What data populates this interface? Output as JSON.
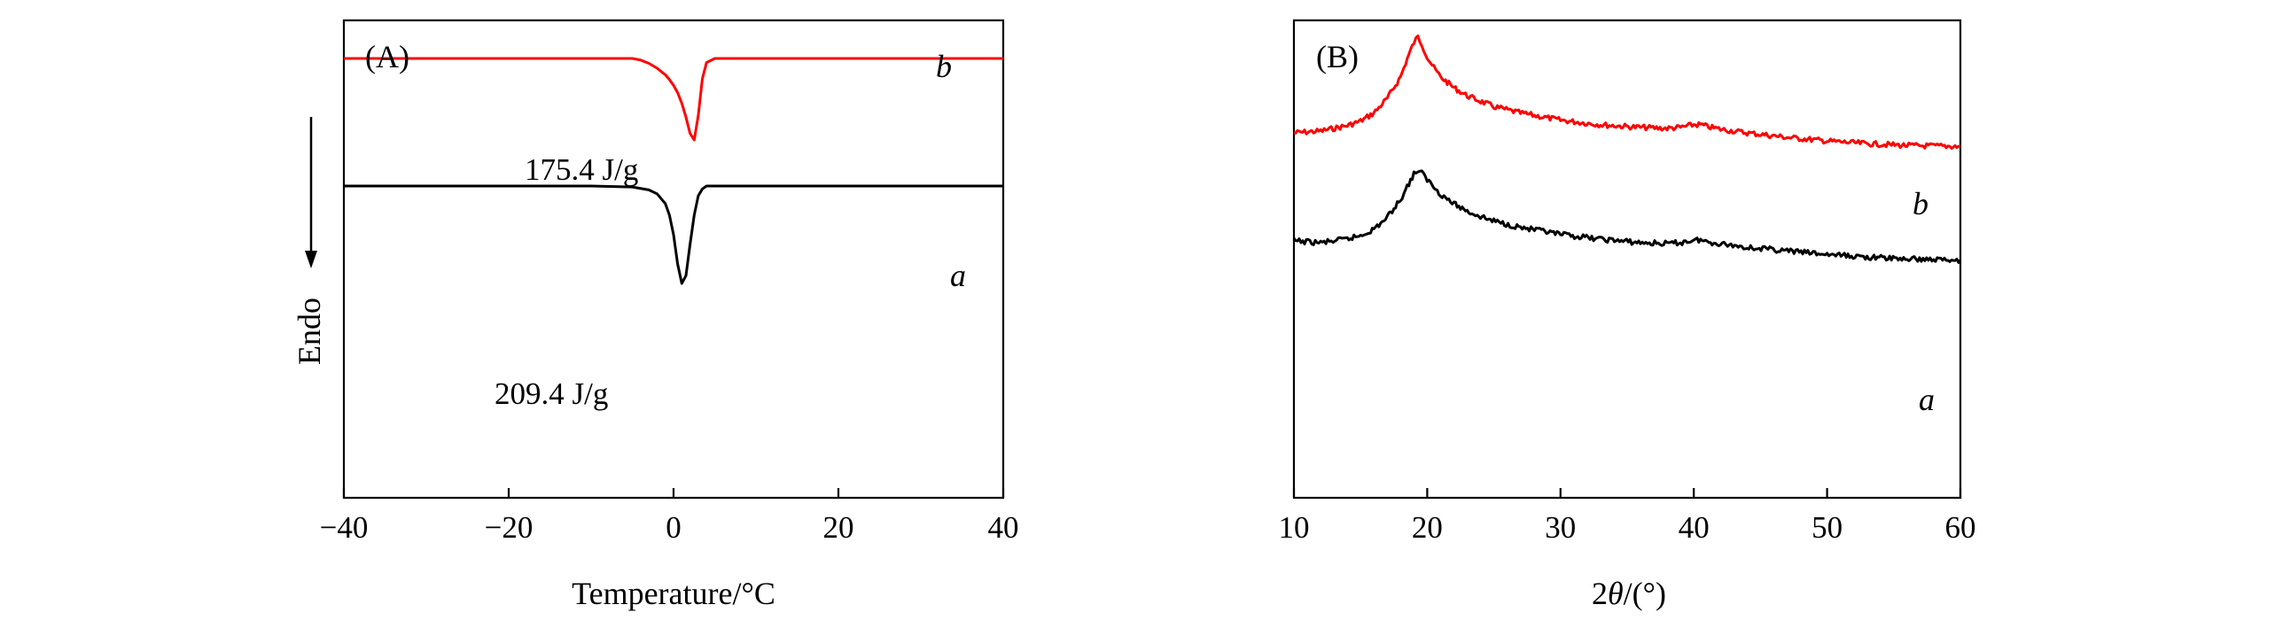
{
  "chart_data": [
    {
      "panel": "(A)",
      "type": "line",
      "xlabel": "Temperature/°C",
      "ylabel": "Endo",
      "xlim": [
        -40,
        40
      ],
      "xticks": [
        "−40",
        "−20",
        "0",
        "20",
        "40"
      ],
      "y_ticks_shown": false,
      "grid": false,
      "series": [
        {
          "name": "b",
          "color": "#ff0000",
          "annotation": "175.4 J/g",
          "x": [
            -40,
            -30,
            -20,
            -10,
            -5,
            -4,
            -3,
            -2,
            -1,
            -0.5,
            0,
            0.5,
            1,
            1.5,
            2,
            2.5,
            3,
            3.5,
            4,
            5,
            10,
            20,
            30,
            40
          ],
          "y": [
            0.0,
            0.0,
            0.0,
            0.0,
            0.0,
            -0.02,
            -0.06,
            -0.12,
            -0.2,
            -0.26,
            -0.33,
            -0.42,
            -0.55,
            -0.72,
            -0.92,
            -1.0,
            -0.7,
            -0.25,
            -0.05,
            0.0,
            0.0,
            0.0,
            0.0,
            0.0
          ]
        },
        {
          "name": "a",
          "color": "#000000",
          "annotation": "209.4 J/g",
          "x": [
            -40,
            -30,
            -20,
            -10,
            -5,
            -3,
            -2,
            -1,
            -0.5,
            0,
            0.5,
            1,
            1.5,
            2,
            2.5,
            3,
            3.5,
            4,
            5,
            10,
            20,
            30,
            40
          ],
          "y": [
            0.0,
            0.0,
            0.0,
            0.0,
            -0.01,
            -0.04,
            -0.08,
            -0.18,
            -0.3,
            -0.5,
            -0.8,
            -1.0,
            -0.92,
            -0.6,
            -0.3,
            -0.1,
            -0.03,
            0.0,
            0.0,
            0.0,
            0.0,
            0.0,
            0.0
          ]
        }
      ]
    },
    {
      "panel": "(B)",
      "type": "line",
      "xlabel": "2θ/(°)",
      "xlabel_var": "θ",
      "xlabel_pre": "2",
      "xlabel_post": "/(°)",
      "xlim": [
        10,
        60
      ],
      "xticks": [
        "10",
        "20",
        "30",
        "40",
        "50",
        "60"
      ],
      "y_ticks_shown": false,
      "grid": false,
      "series": [
        {
          "name": "b",
          "color": "#ff0000",
          "x": [
            10,
            12,
            14,
            15,
            16,
            17,
            18,
            18.5,
            19,
            19.3,
            19.6,
            20,
            20.5,
            21,
            22,
            23,
            24,
            25,
            27,
            30,
            33,
            36,
            38,
            39,
            40,
            40.5,
            41,
            42,
            44,
            47,
            50,
            53,
            56,
            60
          ],
          "y": [
            0.0,
            0.02,
            0.08,
            0.13,
            0.22,
            0.38,
            0.62,
            0.82,
            1.0,
            1.06,
            0.98,
            0.84,
            0.72,
            0.62,
            0.5,
            0.41,
            0.35,
            0.29,
            0.22,
            0.14,
            0.09,
            0.06,
            0.05,
            0.06,
            0.09,
            0.09,
            0.07,
            0.04,
            0.0,
            -0.05,
            -0.09,
            -0.12,
            -0.14,
            -0.15
          ]
        },
        {
          "name": "a",
          "color": "#000000",
          "x": [
            10,
            12,
            14,
            15,
            16,
            17,
            18,
            18.5,
            19,
            19.3,
            19.6,
            20,
            20.5,
            21,
            22,
            23,
            24,
            25,
            27,
            30,
            33,
            36,
            38,
            39,
            40,
            40.5,
            41,
            42,
            44,
            47,
            50,
            53,
            56,
            60
          ],
          "y": [
            0.0,
            -0.02,
            0.02,
            0.06,
            0.13,
            0.26,
            0.46,
            0.6,
            0.74,
            0.78,
            0.75,
            0.68,
            0.6,
            0.52,
            0.41,
            0.33,
            0.27,
            0.22,
            0.15,
            0.07,
            0.02,
            -0.02,
            -0.03,
            -0.02,
            0.01,
            0.01,
            -0.01,
            -0.03,
            -0.07,
            -0.11,
            -0.15,
            -0.18,
            -0.2,
            -0.21
          ]
        }
      ]
    }
  ]
}
